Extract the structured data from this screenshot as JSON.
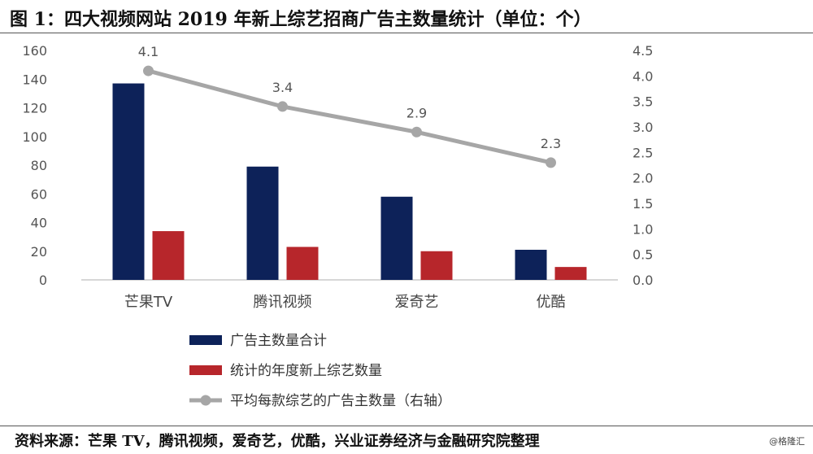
{
  "page": {
    "title": "图 1：四大视频网站 2019 年新上综艺招商广告主数量统计（单位：个）",
    "source": "资料来源：芒果 TV，腾讯视频，爱奇艺，优酷，兴业证券经济与金融研究院整理",
    "watermark": "@格隆汇"
  },
  "colors": {
    "navy": "#0d2259",
    "red": "#b7262b",
    "gray": "#a6a6a6"
  },
  "chart_data": {
    "type": "bar",
    "categories": [
      "芒果TV",
      "腾讯视频",
      "爱奇艺",
      "优酷"
    ],
    "series": [
      {
        "name": "广告主数量合计",
        "type": "bar",
        "axis": "left",
        "color": "#0d2259",
        "values": [
          137,
          79,
          58,
          21
        ]
      },
      {
        "name": "统计的年度新上综艺数量",
        "type": "bar",
        "axis": "left",
        "color": "#b7262b",
        "values": [
          34,
          23,
          20,
          9
        ]
      },
      {
        "name": "平均每款综艺的广告主数量（右轴）",
        "type": "line",
        "axis": "right",
        "color": "#a6a6a6",
        "values": [
          4.1,
          3.4,
          2.9,
          2.3
        ],
        "labels": [
          "4.1",
          "3.4",
          "2.9",
          "2.3"
        ]
      }
    ],
    "left_axis": {
      "ylim": [
        0,
        160
      ],
      "ticks": [
        "0",
        "20",
        "40",
        "60",
        "80",
        "100",
        "120",
        "140",
        "160"
      ]
    },
    "right_axis": {
      "ylim": [
        0,
        4.5
      ],
      "ticks": [
        "0.0",
        "0.5",
        "1.0",
        "1.5",
        "2.0",
        "2.5",
        "3.0",
        "3.5",
        "4.0",
        "4.5"
      ]
    },
    "legend_placement": "bottom",
    "grid": false
  }
}
